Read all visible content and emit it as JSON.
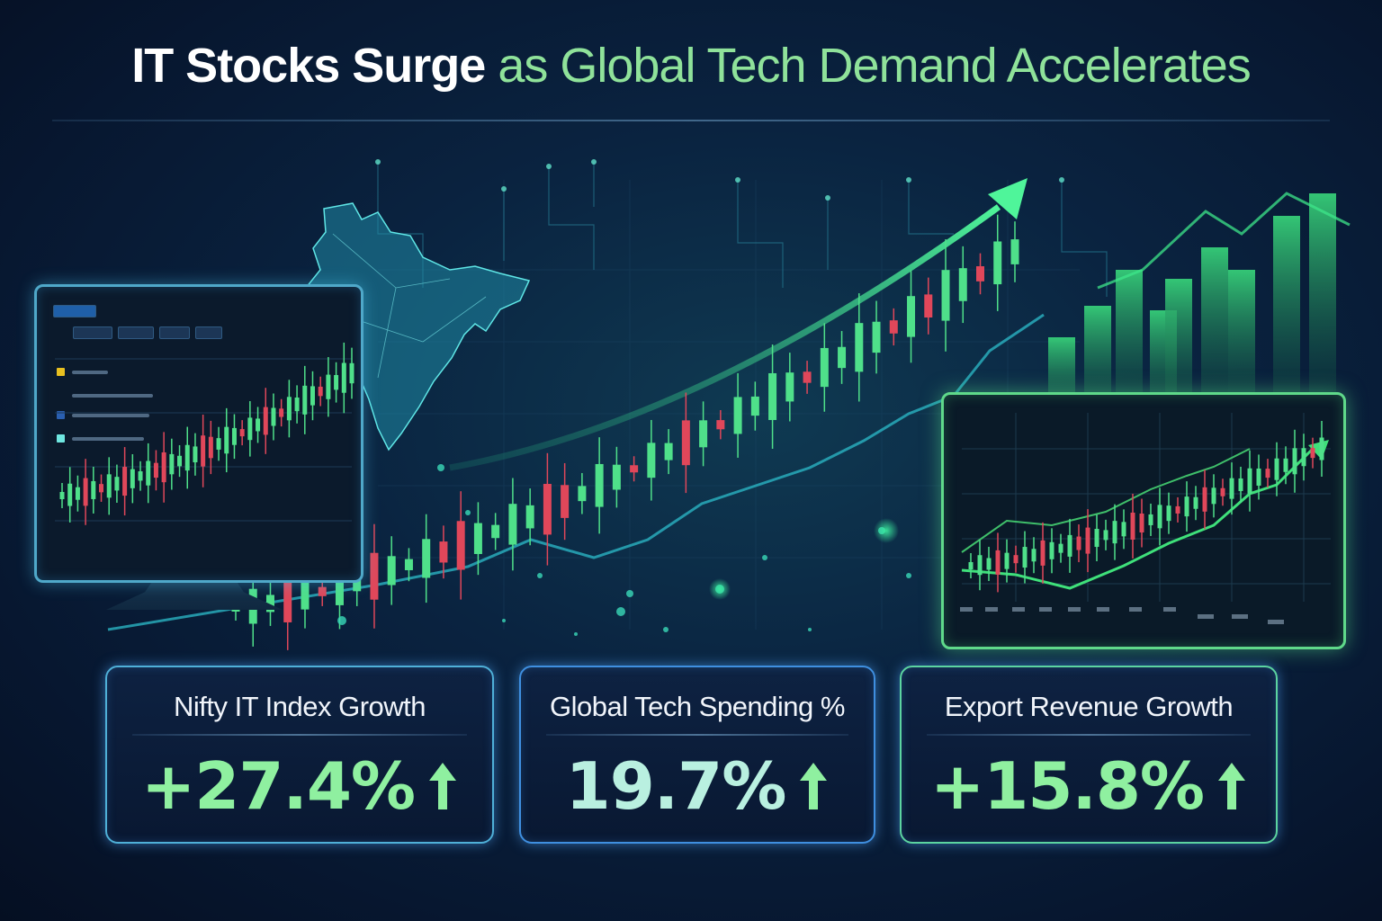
{
  "headline": {
    "part1": "IT Stocks Surge",
    "part2": " as Global Tech Demand Accelerates"
  },
  "stats": [
    {
      "label": "Nifty IT Index Growth",
      "value": "+27.4%",
      "trend": "arrow-up-icon"
    },
    {
      "label": "Global Tech Spending %",
      "value": "19.7%",
      "trend": "arrow-up-icon"
    },
    {
      "label": "Export Revenue Growth",
      "value": "+15.8%",
      "trend": "arrow-up-icon"
    }
  ],
  "colors": {
    "headline_white": "#ffffff",
    "headline_green": "#8fe29a",
    "candle_up": "#4fe08a",
    "candle_down": "#e0475a",
    "trend_arrow": "#3ee58a"
  },
  "icons": [
    "india-map-icon",
    "trend-arrow-icon",
    "arrow-up-icon",
    "monitor-icon"
  ]
}
